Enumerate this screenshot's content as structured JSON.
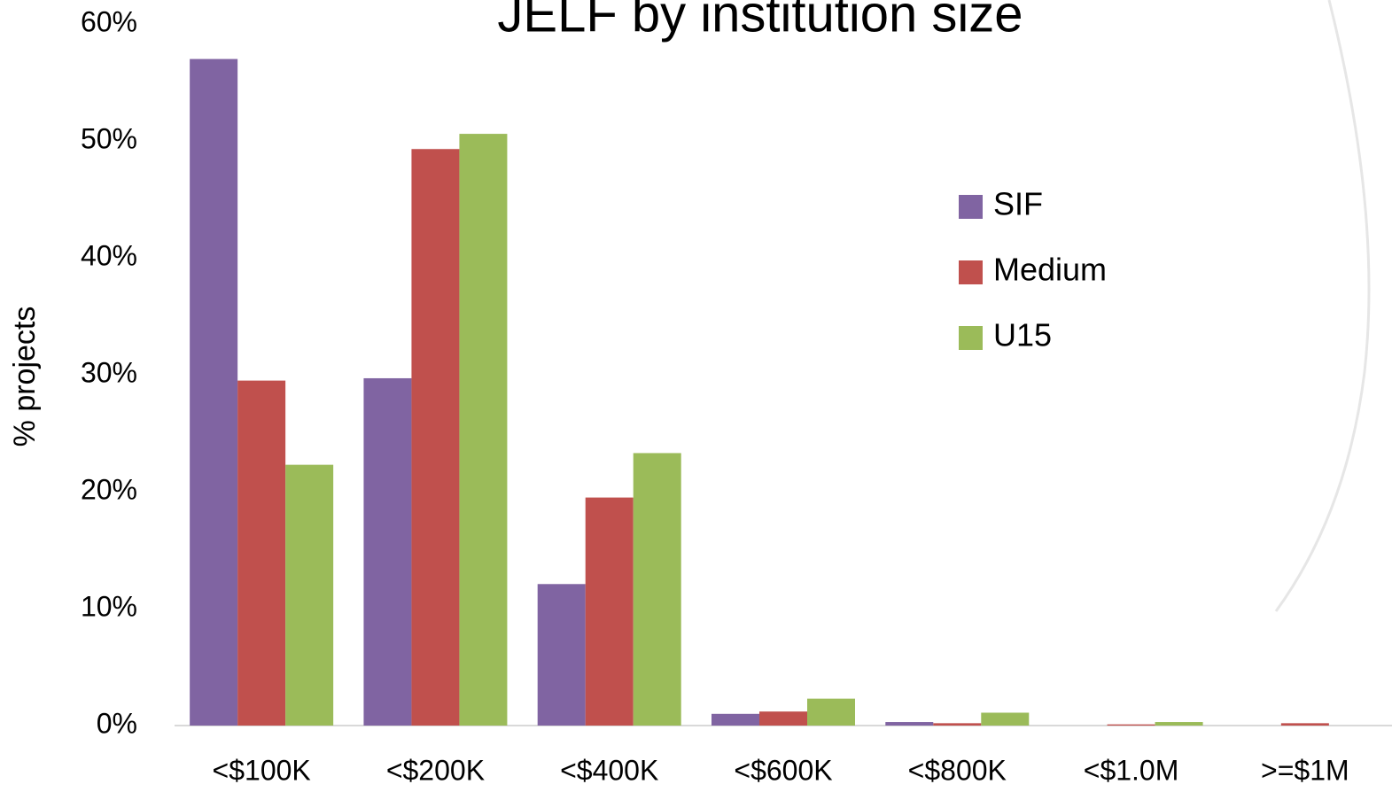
{
  "chart_data": {
    "type": "bar",
    "title": "JELF by institution size",
    "ylabel": "% projects",
    "categories": [
      "<$100K",
      "<$200K",
      "<$400K",
      "<$600K",
      "<$800K",
      "<$1.0M",
      ">=$1M"
    ],
    "series": [
      {
        "name": "SIF",
        "color": "#8064a2",
        "values": [
          57.0,
          29.7,
          12.1,
          1.0,
          0.3,
          0,
          0
        ]
      },
      {
        "name": "Medium",
        "color": "#c0504d",
        "values": [
          29.5,
          49.3,
          19.5,
          1.2,
          0.2,
          0.1,
          0.2
        ]
      },
      {
        "name": "U15",
        "color": "#9bbb59",
        "values": [
          22.3,
          50.6,
          23.3,
          2.3,
          1.1,
          0.3,
          0
        ]
      }
    ],
    "ylim": [
      0,
      60
    ],
    "yticks": [
      {
        "value": 0,
        "label": "0%"
      },
      {
        "value": 10,
        "label": "10%"
      },
      {
        "value": 20,
        "label": "20%"
      },
      {
        "value": 30,
        "label": "30%"
      },
      {
        "value": 40,
        "label": "40%"
      },
      {
        "value": 50,
        "label": "50%"
      },
      {
        "value": 60,
        "label": "60%"
      }
    ],
    "grid": false,
    "legend": "right"
  }
}
